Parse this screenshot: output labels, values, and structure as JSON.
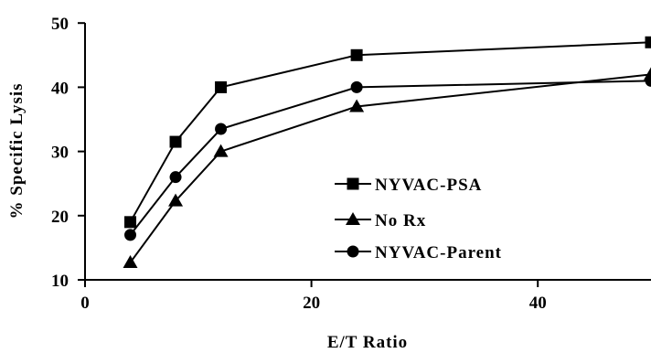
{
  "chart_data": {
    "type": "line",
    "xlabel": "E/T Ratio",
    "ylabel": "% Specific Lysis",
    "xlim": [
      0,
      50
    ],
    "ylim": [
      10,
      50
    ],
    "xticks": [
      0,
      20,
      40
    ],
    "yticks": [
      10,
      20,
      30,
      40,
      50
    ],
    "grid": false,
    "legend_position": "bottom-right",
    "series": [
      {
        "name": "NYVAC-PSA",
        "marker": "square",
        "color": "#000000",
        "x": [
          4,
          8,
          12,
          24,
          50
        ],
        "y": [
          19,
          31.5,
          40,
          45,
          47
        ]
      },
      {
        "name": "No Rx",
        "marker": "triangle",
        "color": "#000000",
        "x": [
          4,
          8,
          12,
          24,
          50
        ],
        "y": [
          12.7,
          22.3,
          30,
          37,
          42
        ]
      },
      {
        "name": "NYVAC-Parent",
        "marker": "circle",
        "color": "#000000",
        "x": [
          4,
          8,
          12,
          24,
          50
        ],
        "y": [
          17,
          26,
          33.5,
          40,
          41
        ]
      }
    ]
  }
}
